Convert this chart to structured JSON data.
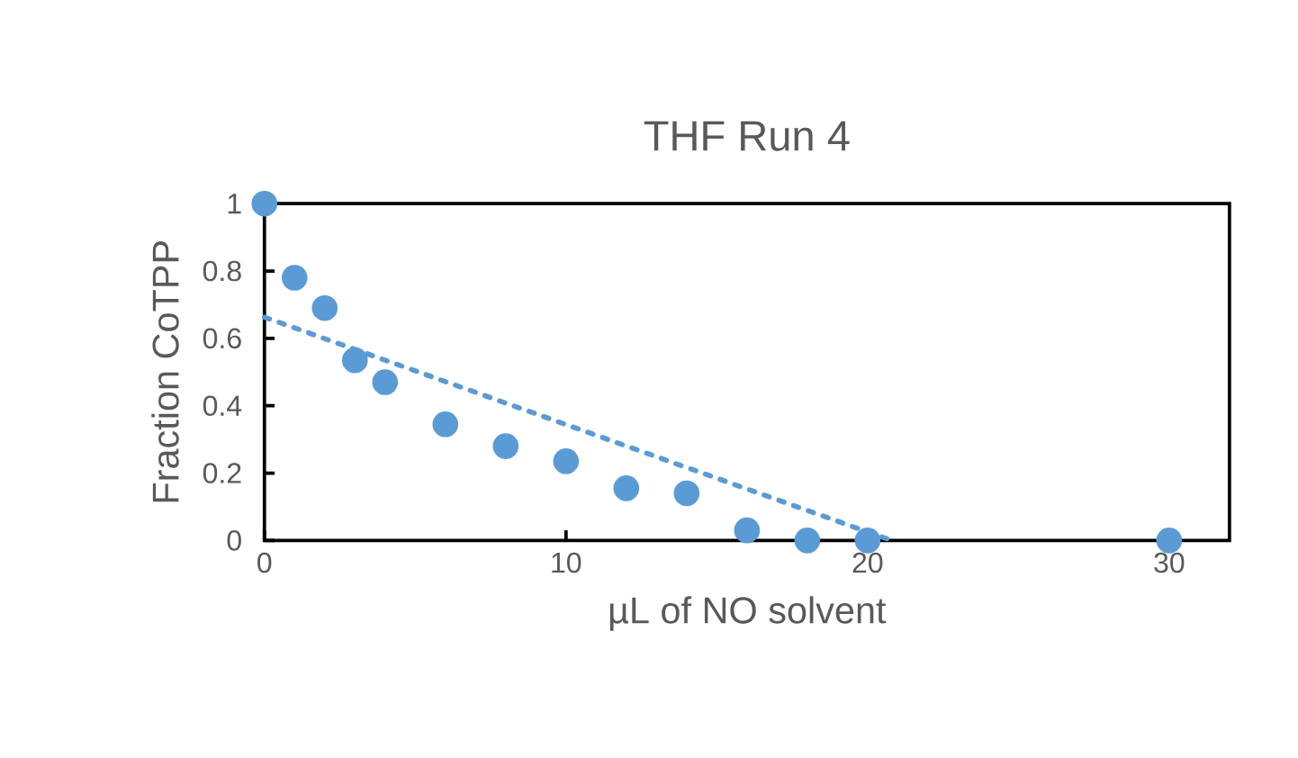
{
  "chart_data": {
    "type": "scatter",
    "title": "THF Run 4",
    "xlabel": "µL of NO solvent",
    "ylabel": "Fraction CoTPP",
    "xlim": [
      0,
      32
    ],
    "xticks": [
      0,
      10,
      20,
      30
    ],
    "ylim": [
      0,
      1
    ],
    "yticks": [
      0,
      0.2,
      0.4,
      0.6,
      0.8,
      1
    ],
    "grid": false,
    "series": [
      {
        "marker": "circle",
        "color": "#5b9bd5",
        "x": [
          0,
          1,
          2,
          3,
          4,
          6,
          8,
          10,
          12,
          14,
          16,
          18,
          20,
          30
        ],
        "values": [
          1,
          0.78,
          0.69,
          0.535,
          0.47,
          0.345,
          0.28,
          0.235,
          0.155,
          0.14,
          0.03,
          0,
          0,
          0
        ]
      },
      {
        "type": "line",
        "line_style": "dotted",
        "marker": "none",
        "color": "#5b9bd5",
        "x": [
          0,
          20.8
        ],
        "values": [
          0.663,
          0
        ]
      }
    ]
  }
}
